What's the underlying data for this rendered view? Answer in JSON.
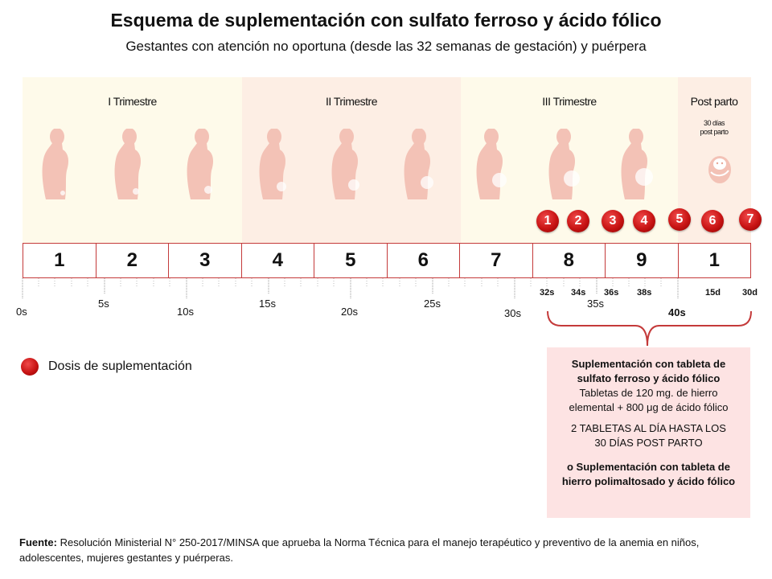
{
  "header": {
    "title": "Esquema de suplementación con sulfato ferroso y ácido fólico",
    "subtitle": "Gestantes con atención no oportuna (desde las 32 semanas de gestación) y puérpera"
  },
  "trimesters": [
    {
      "label": "I Trimestre",
      "color": "#fefaea"
    },
    {
      "label": "II Trimestre",
      "color": "#fdeee4"
    },
    {
      "label": "III Trimestre",
      "color": "#fefaea"
    }
  ],
  "postpartum": {
    "label": "Post parto",
    "note_line1": "30 días",
    "note_line2": "post parto",
    "color": "#fdeee4"
  },
  "months": [
    "1",
    "2",
    "3",
    "4",
    "5",
    "6",
    "7",
    "8",
    "9",
    "1"
  ],
  "week_labels": {
    "w0": "0s",
    "w5": "5s",
    "w10": "10s",
    "w15": "15s",
    "w20": "20s",
    "w25": "25s",
    "w30": "30s",
    "w35": "35s",
    "w40": "40s"
  },
  "dose_labels": {
    "d32": "32s",
    "d34": "34s",
    "d36": "36s",
    "d38": "38s",
    "p15": "15d",
    "p30": "30d"
  },
  "doses": [
    "1",
    "2",
    "3",
    "4",
    "5",
    "6",
    "7"
  ],
  "legend": {
    "label": "Dosis de suplementación"
  },
  "info_box": {
    "heading": "Suplementación con tableta de sulfato ferroso y ácido fólico",
    "detail": "Tabletas de 120 mg. de hierro elemental + 800 μg de ácido fólico",
    "dosage": "2 TABLETAS AL DÍA HASTA LOS 30 DÍAS POST PARTO",
    "alternative": "o Suplementación con tableta de hierro polimaltosado y ácido fólico"
  },
  "footer": {
    "label": "Fuente:",
    "text": "Resolución Ministerial N° 250-2017/MINSA que aprueba la Norma Técnica para el manejo terapéutico y preventivo de la anemia en niños, adolescentes, mujeres gestantes y puérperas."
  },
  "colors": {
    "accent": "#c43a3a",
    "dose": "#c81414",
    "info_bg": "#fde3e3",
    "figure": "#f3c2b6"
  }
}
